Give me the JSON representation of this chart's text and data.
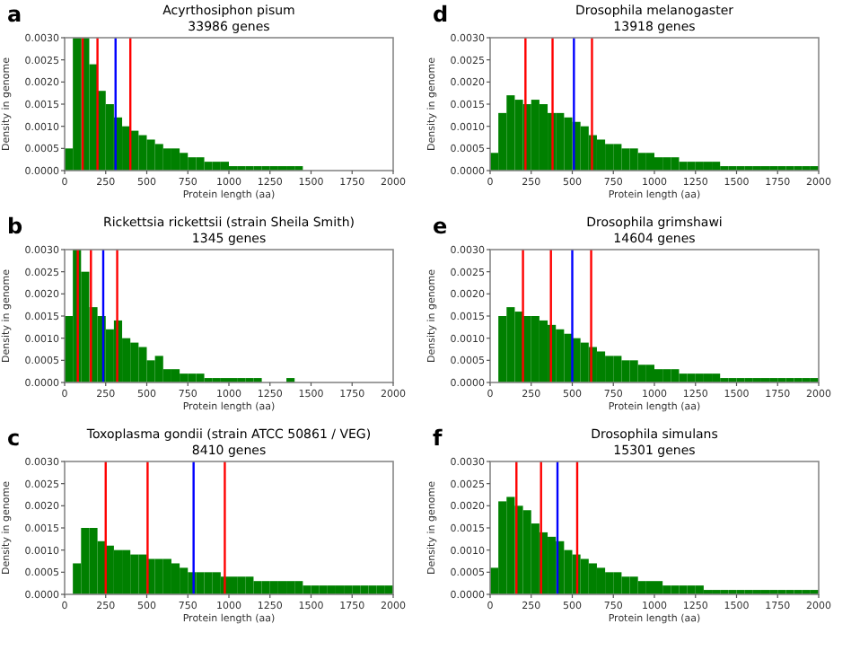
{
  "chart_data": [
    {
      "type": "histogram",
      "title": "Acyrthosiphon pisum",
      "subtitle": "33986 genes",
      "annotations": [
        "a"
      ],
      "xlabel": "Protein length (aa)",
      "ylabel": "Density in genome",
      "color": "#008000",
      "bins": [
        0,
        50,
        100,
        150,
        200,
        250,
        300,
        350,
        400,
        450,
        500,
        550,
        600,
        650,
        700,
        750,
        800,
        850,
        900,
        950,
        1000,
        1050,
        1100,
        1150,
        1200,
        1250,
        1300,
        1350,
        1400,
        1450,
        1500,
        1550,
        1600,
        1650,
        1700,
        1750,
        1800,
        1850,
        1900,
        1950,
        2000
      ],
      "values": [
        0.0005,
        0.003,
        0.003,
        0.0024,
        0.0018,
        0.0015,
        0.0012,
        0.001,
        0.0009,
        0.0008,
        0.0007,
        0.0006,
        0.0005,
        0.0005,
        0.0004,
        0.0003,
        0.0003,
        0.0002,
        0.0002,
        0.0002,
        0.0001,
        0.0001,
        0.0001,
        0.0001,
        0.0001,
        0.0001,
        0.0001,
        0.0001,
        0.0001,
        0,
        0,
        0,
        0,
        0,
        0,
        0,
        0,
        0,
        0,
        0
      ],
      "xlim": [
        0,
        2000
      ],
      "xticks": [
        0,
        250,
        500,
        750,
        1000,
        1250,
        1500,
        1750,
        2000
      ],
      "ylim": [
        0,
        0.003
      ],
      "yticks": [
        {
          "value": 0,
          "label": "0.0000"
        },
        {
          "value": 0.0005,
          "label": "0.0005"
        },
        {
          "value": 0.001,
          "label": "0.0010"
        },
        {
          "value": 0.0015,
          "label": "0.0015"
        },
        {
          "value": 0.002,
          "label": "0.0020"
        },
        {
          "value": 0.0025,
          "label": "0.0025"
        },
        {
          "value": 0.003,
          "label": "0.0030"
        }
      ],
      "ref_lines": [
        {
          "axis": "x",
          "value": 110,
          "color": "#ff0000"
        },
        {
          "axis": "x",
          "value": 200,
          "color": "#ff0000"
        },
        {
          "axis": "x",
          "value": 310,
          "color": "#0000ff"
        },
        {
          "axis": "x",
          "value": 400,
          "color": "#ff0000"
        }
      ]
    },
    {
      "type": "histogram",
      "title": "Drosophila melanogaster",
      "subtitle": "13918 genes",
      "annotations": [
        "d"
      ],
      "xlabel": "Protein length (aa)",
      "ylabel": "Density in genome",
      "color": "#008000",
      "bins": [
        0,
        50,
        100,
        150,
        200,
        250,
        300,
        350,
        400,
        450,
        500,
        550,
        600,
        650,
        700,
        750,
        800,
        850,
        900,
        950,
        1000,
        1050,
        1100,
        1150,
        1200,
        1250,
        1300,
        1350,
        1400,
        1450,
        1500,
        1550,
        1600,
        1650,
        1700,
        1750,
        1800,
        1850,
        1900,
        1950,
        2000
      ],
      "values": [
        0.0004,
        0.0013,
        0.0017,
        0.0016,
        0.0015,
        0.0016,
        0.0015,
        0.0013,
        0.0013,
        0.0012,
        0.0011,
        0.001,
        0.0008,
        0.0007,
        0.0006,
        0.0006,
        0.0005,
        0.0005,
        0.0004,
        0.0004,
        0.0003,
        0.0003,
        0.0003,
        0.0002,
        0.0002,
        0.0002,
        0.0002,
        0.0002,
        0.0001,
        0.0001,
        0.0001,
        0.0001,
        0.0001,
        0.0001,
        0.0001,
        0.0001,
        0.0001,
        0.0001,
        0.0001,
        0.0001
      ],
      "xlim": [
        0,
        2000
      ],
      "xticks": [
        0,
        250,
        500,
        750,
        1000,
        1250,
        1500,
        1750,
        2000
      ],
      "ylim": [
        0,
        0.003
      ],
      "yticks": [
        {
          "value": 0,
          "label": "0.0000"
        },
        {
          "value": 0.0005,
          "label": "0.0005"
        },
        {
          "value": 0.001,
          "label": "0.0010"
        },
        {
          "value": 0.0015,
          "label": "0.0015"
        },
        {
          "value": 0.002,
          "label": "0.0020"
        },
        {
          "value": 0.0025,
          "label": "0.0025"
        },
        {
          "value": 0.003,
          "label": "0.0030"
        }
      ],
      "ref_lines": [
        {
          "axis": "x",
          "value": 215,
          "color": "#ff0000"
        },
        {
          "axis": "x",
          "value": 380,
          "color": "#ff0000"
        },
        {
          "axis": "x",
          "value": 510,
          "color": "#0000ff"
        },
        {
          "axis": "x",
          "value": 620,
          "color": "#ff0000"
        }
      ]
    },
    {
      "type": "histogram",
      "title": "Rickettsia rickettsii (strain Sheila Smith)",
      "subtitle": "1345 genes",
      "annotations": [
        "b"
      ],
      "xlabel": "Protein length (aa)",
      "ylabel": "Density in genome",
      "color": "#008000",
      "bins": [
        0,
        50,
        100,
        150,
        200,
        250,
        300,
        350,
        400,
        450,
        500,
        550,
        600,
        650,
        700,
        750,
        800,
        850,
        900,
        950,
        1000,
        1050,
        1100,
        1150,
        1200,
        1250,
        1300,
        1350,
        1400,
        1450,
        1500,
        1550,
        1600,
        1650,
        1700,
        1750,
        1800,
        1850,
        1900,
        1950,
        2000
      ],
      "values": [
        0.0015,
        0.003,
        0.0025,
        0.0017,
        0.0015,
        0.0012,
        0.0014,
        0.001,
        0.0009,
        0.0008,
        0.0005,
        0.0006,
        0.0003,
        0.0003,
        0.0002,
        0.0002,
        0.0002,
        0.0001,
        0.0001,
        0.0001,
        0.0001,
        0.0001,
        0.0001,
        0.0001,
        0,
        0,
        0,
        0.0001,
        0,
        0,
        0,
        0,
        0,
        0,
        0,
        0,
        0,
        0,
        0,
        0
      ],
      "xlim": [
        0,
        2000
      ],
      "xticks": [
        0,
        250,
        500,
        750,
        1000,
        1250,
        1500,
        1750,
        2000
      ],
      "ylim": [
        0,
        0.003
      ],
      "yticks": [
        {
          "value": 0,
          "label": "0.0000"
        },
        {
          "value": 0.0005,
          "label": "0.0005"
        },
        {
          "value": 0.001,
          "label": "0.0010"
        },
        {
          "value": 0.0015,
          "label": "0.0015"
        },
        {
          "value": 0.002,
          "label": "0.0020"
        },
        {
          "value": 0.0025,
          "label": "0.0025"
        },
        {
          "value": 0.003,
          "label": "0.0030"
        }
      ],
      "ref_lines": [
        {
          "axis": "x",
          "value": 80,
          "color": "#ff0000"
        },
        {
          "axis": "x",
          "value": 160,
          "color": "#ff0000"
        },
        {
          "axis": "x",
          "value": 235,
          "color": "#0000ff"
        },
        {
          "axis": "x",
          "value": 320,
          "color": "#ff0000"
        }
      ]
    },
    {
      "type": "histogram",
      "title": "Drosophila grimshawi",
      "subtitle": "14604 genes",
      "annotations": [
        "e"
      ],
      "xlabel": "Protein length (aa)",
      "ylabel": "Density in genome",
      "color": "#008000",
      "bins": [
        0,
        50,
        100,
        150,
        200,
        250,
        300,
        350,
        400,
        450,
        500,
        550,
        600,
        650,
        700,
        750,
        800,
        850,
        900,
        950,
        1000,
        1050,
        1100,
        1150,
        1200,
        1250,
        1300,
        1350,
        1400,
        1450,
        1500,
        1550,
        1600,
        1650,
        1700,
        1750,
        1800,
        1850,
        1900,
        1950,
        2000
      ],
      "values": [
        0,
        0.0015,
        0.0017,
        0.0016,
        0.0015,
        0.0015,
        0.0014,
        0.0013,
        0.0012,
        0.0011,
        0.001,
        0.0009,
        0.0008,
        0.0007,
        0.0006,
        0.0006,
        0.0005,
        0.0005,
        0.0004,
        0.0004,
        0.0003,
        0.0003,
        0.0003,
        0.0002,
        0.0002,
        0.0002,
        0.0002,
        0.0002,
        0.0001,
        0.0001,
        0.0001,
        0.0001,
        0.0001,
        0.0001,
        0.0001,
        0.0001,
        0.0001,
        0.0001,
        0.0001,
        0.0001
      ],
      "xlim": [
        0,
        2000
      ],
      "xticks": [
        0,
        250,
        500,
        750,
        1000,
        1250,
        1500,
        1750,
        2000
      ],
      "ylim": [
        0,
        0.003
      ],
      "yticks": [
        {
          "value": 0,
          "label": "0.0000"
        },
        {
          "value": 0.0005,
          "label": "0.0005"
        },
        {
          "value": 0.001,
          "label": "0.0010"
        },
        {
          "value": 0.0015,
          "label": "0.0015"
        },
        {
          "value": 0.002,
          "label": "0.0020"
        },
        {
          "value": 0.0025,
          "label": "0.0025"
        },
        {
          "value": 0.003,
          "label": "0.0030"
        }
      ],
      "ref_lines": [
        {
          "axis": "x",
          "value": 200,
          "color": "#ff0000"
        },
        {
          "axis": "x",
          "value": 370,
          "color": "#ff0000"
        },
        {
          "axis": "x",
          "value": 500,
          "color": "#0000ff"
        },
        {
          "axis": "x",
          "value": 615,
          "color": "#ff0000"
        }
      ]
    },
    {
      "type": "histogram",
      "title": "Toxoplasma gondii (strain ATCC 50861 / VEG)",
      "subtitle": "8410 genes",
      "annotations": [
        "c"
      ],
      "xlabel": "Protein length (aa)",
      "ylabel": "Density in genome",
      "color": "#008000",
      "bins": [
        0,
        50,
        100,
        150,
        200,
        250,
        300,
        350,
        400,
        450,
        500,
        550,
        600,
        650,
        700,
        750,
        800,
        850,
        900,
        950,
        1000,
        1050,
        1100,
        1150,
        1200,
        1250,
        1300,
        1350,
        1400,
        1450,
        1500,
        1550,
        1600,
        1650,
        1700,
        1750,
        1800,
        1850,
        1900,
        1950,
        2000
      ],
      "values": [
        0,
        0.0007,
        0.0015,
        0.0015,
        0.0012,
        0.0011,
        0.001,
        0.001,
        0.0009,
        0.0009,
        0.0008,
        0.0008,
        0.0008,
        0.0007,
        0.0006,
        0.0005,
        0.0005,
        0.0005,
        0.0005,
        0.0004,
        0.0004,
        0.0004,
        0.0004,
        0.0003,
        0.0003,
        0.0003,
        0.0003,
        0.0003,
        0.0003,
        0.0002,
        0.0002,
        0.0002,
        0.0002,
        0.0002,
        0.0002,
        0.0002,
        0.0002,
        0.0002,
        0.0002,
        0.0002
      ],
      "xlim": [
        0,
        2000
      ],
      "xticks": [
        0,
        250,
        500,
        750,
        1000,
        1250,
        1500,
        1750,
        2000
      ],
      "ylim": [
        0,
        0.003
      ],
      "yticks": [
        {
          "value": 0,
          "label": "0.0000"
        },
        {
          "value": 0.0005,
          "label": "0.0005"
        },
        {
          "value": 0.001,
          "label": "0.0010"
        },
        {
          "value": 0.0015,
          "label": "0.0015"
        },
        {
          "value": 0.002,
          "label": "0.0020"
        },
        {
          "value": 0.0025,
          "label": "0.0025"
        },
        {
          "value": 0.003,
          "label": "0.0030"
        }
      ],
      "ref_lines": [
        {
          "axis": "x",
          "value": 250,
          "color": "#ff0000"
        },
        {
          "axis": "x",
          "value": 505,
          "color": "#ff0000"
        },
        {
          "axis": "x",
          "value": 785,
          "color": "#0000ff"
        },
        {
          "axis": "x",
          "value": 975,
          "color": "#ff0000"
        }
      ]
    },
    {
      "type": "histogram",
      "title": "Drosophila simulans",
      "subtitle": "15301 genes",
      "annotations": [
        "f"
      ],
      "xlabel": "Protein length (aa)",
      "ylabel": "Density in genome",
      "color": "#008000",
      "bins": [
        0,
        50,
        100,
        150,
        200,
        250,
        300,
        350,
        400,
        450,
        500,
        550,
        600,
        650,
        700,
        750,
        800,
        850,
        900,
        950,
        1000,
        1050,
        1100,
        1150,
        1200,
        1250,
        1300,
        1350,
        1400,
        1450,
        1500,
        1550,
        1600,
        1650,
        1700,
        1750,
        1800,
        1850,
        1900,
        1950,
        2000
      ],
      "values": [
        0.0006,
        0.0021,
        0.0022,
        0.002,
        0.0019,
        0.0016,
        0.0014,
        0.0013,
        0.0012,
        0.001,
        0.0009,
        0.0008,
        0.0007,
        0.0006,
        0.0005,
        0.0005,
        0.0004,
        0.0004,
        0.0003,
        0.0003,
        0.0003,
        0.0002,
        0.0002,
        0.0002,
        0.0002,
        0.0002,
        0.0001,
        0.0001,
        0.0001,
        0.0001,
        0.0001,
        0.0001,
        0.0001,
        0.0001,
        0.0001,
        0.0001,
        0.0001,
        0.0001,
        0.0001,
        0.0001
      ],
      "xlim": [
        0,
        2000
      ],
      "xticks": [
        0,
        250,
        500,
        750,
        1000,
        1250,
        1500,
        1750,
        2000
      ],
      "ylim": [
        0,
        0.003
      ],
      "yticks": [
        {
          "value": 0,
          "label": "0.0000"
        },
        {
          "value": 0.0005,
          "label": "0.0005"
        },
        {
          "value": 0.001,
          "label": "0.0010"
        },
        {
          "value": 0.0015,
          "label": "0.0015"
        },
        {
          "value": 0.002,
          "label": "0.0020"
        },
        {
          "value": 0.0025,
          "label": "0.0025"
        },
        {
          "value": 0.003,
          "label": "0.0030"
        }
      ],
      "ref_lines": [
        {
          "axis": "x",
          "value": 160,
          "color": "#ff0000"
        },
        {
          "axis": "x",
          "value": 310,
          "color": "#ff0000"
        },
        {
          "axis": "x",
          "value": 410,
          "color": "#0000ff"
        },
        {
          "axis": "x",
          "value": 530,
          "color": "#ff0000"
        }
      ]
    }
  ]
}
